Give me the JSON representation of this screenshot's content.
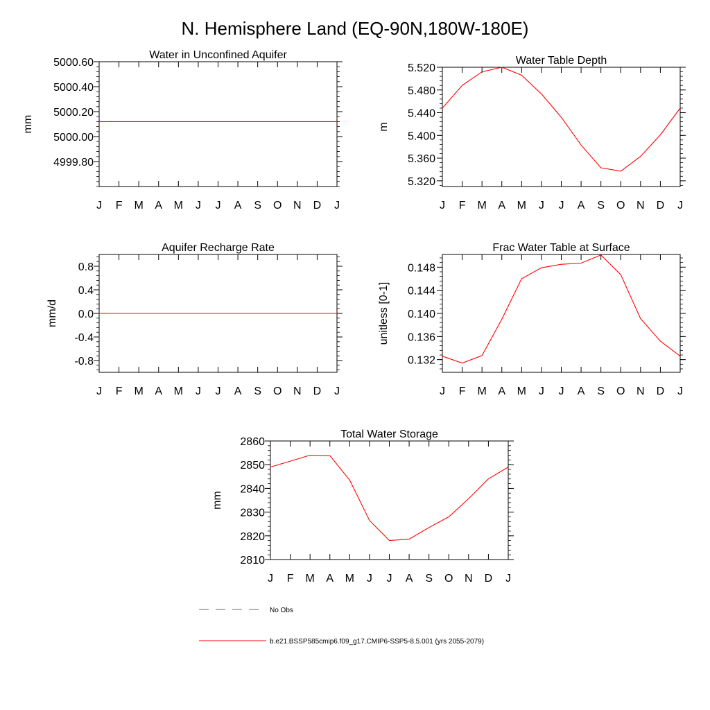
{
  "title": "N. Hemisphere Land (EQ-90N,180W-180E)",
  "legend": {
    "obs_label": "No Obs",
    "model_label": "b.e21.BSSP585cmip6.f09_g17.CMIP6-SSP5-8.5.001 (yrs 2055-2079)",
    "obs_color": "#888888",
    "model_color": "#ff0000"
  },
  "chart_data": [
    {
      "type": "line",
      "title": "Water in Unconfined Aquifer",
      "ylabel": "mm",
      "xlabel": "",
      "categories": [
        "J",
        "F",
        "M",
        "A",
        "M",
        "J",
        "J",
        "A",
        "S",
        "O",
        "N",
        "D",
        "J"
      ],
      "ylim": [
        4999.6,
        5000.6
      ],
      "yticks": [
        4999.8,
        5000.0,
        5000.2,
        5000.4,
        5000.6
      ],
      "ytick_labels": [
        "4999.80",
        "5000.00",
        "5000.20",
        "5000.40",
        "5000.60"
      ],
      "series": [
        {
          "name": "model",
          "color": "#ff0000",
          "values": [
            5000.12,
            5000.12,
            5000.12,
            5000.12,
            5000.12,
            5000.12,
            5000.12,
            5000.12,
            5000.12,
            5000.12,
            5000.12,
            5000.12,
            5000.12
          ]
        }
      ]
    },
    {
      "type": "line",
      "title": "Water Table Depth",
      "ylabel": "m",
      "xlabel": "",
      "categories": [
        "J",
        "F",
        "M",
        "A",
        "M",
        "J",
        "J",
        "A",
        "S",
        "O",
        "N",
        "D",
        "J"
      ],
      "ylim": [
        5.31,
        5.52
      ],
      "yticks": [
        5.32,
        5.36,
        5.4,
        5.44,
        5.48,
        5.52
      ],
      "ytick_labels": [
        "5.320",
        "5.360",
        "5.400",
        "5.440",
        "5.480",
        "5.520"
      ],
      "series": [
        {
          "name": "model",
          "color": "#ff0000",
          "values": [
            5.448,
            5.488,
            5.512,
            5.52,
            5.506,
            5.473,
            5.432,
            5.383,
            5.343,
            5.337,
            5.363,
            5.401,
            5.448
          ]
        }
      ]
    },
    {
      "type": "line",
      "title": "Aquifer Recharge Rate",
      "ylabel": "mm/d",
      "xlabel": "",
      "categories": [
        "J",
        "F",
        "M",
        "A",
        "M",
        "J",
        "J",
        "A",
        "S",
        "O",
        "N",
        "D",
        "J"
      ],
      "ylim": [
        -1.0,
        1.0
      ],
      "yticks": [
        -0.8,
        -0.4,
        0.0,
        0.4,
        0.8
      ],
      "ytick_labels": [
        "-0.8",
        "-0.4",
        "0.0",
        "0.4",
        "0.8"
      ],
      "series": [
        {
          "name": "model",
          "color": "#ff0000",
          "values": [
            0,
            0,
            0,
            0,
            0,
            0,
            0,
            0,
            0,
            0,
            0,
            0,
            0
          ]
        }
      ]
    },
    {
      "type": "line",
      "title": "Frac Water Table at Surface",
      "ylabel": "unitless [0-1]",
      "xlabel": "",
      "categories": [
        "J",
        "F",
        "M",
        "A",
        "M",
        "J",
        "J",
        "A",
        "S",
        "O",
        "N",
        "D",
        "J"
      ],
      "ylim": [
        0.1298,
        0.1502
      ],
      "yticks": [
        0.132,
        0.136,
        0.14,
        0.144,
        0.148
      ],
      "ytick_labels": [
        "0.132",
        "0.136",
        "0.140",
        "0.144",
        "0.148"
      ],
      "series": [
        {
          "name": "model",
          "color": "#ff0000",
          "values": [
            0.1326,
            0.1314,
            0.1327,
            0.139,
            0.146,
            0.1479,
            0.1485,
            0.1487,
            0.1501,
            0.1467,
            0.1391,
            0.1352,
            0.1326
          ]
        }
      ]
    },
    {
      "type": "line",
      "title": "Total Water Storage",
      "ylabel": "mm",
      "xlabel": "",
      "categories": [
        "J",
        "F",
        "M",
        "A",
        "M",
        "J",
        "J",
        "A",
        "S",
        "O",
        "N",
        "D",
        "J"
      ],
      "ylim": [
        2810,
        2860
      ],
      "yticks": [
        2810,
        2820,
        2830,
        2840,
        2850,
        2860
      ],
      "ytick_labels": [
        "2810",
        "2820",
        "2830",
        "2840",
        "2850",
        "2860"
      ],
      "series": [
        {
          "name": "model",
          "color": "#ff0000",
          "values": [
            2849,
            2851.5,
            2854,
            2853.8,
            2843.5,
            2826.5,
            2818,
            2818.6,
            2823.5,
            2828,
            2835.6,
            2844,
            2849
          ]
        }
      ]
    }
  ]
}
